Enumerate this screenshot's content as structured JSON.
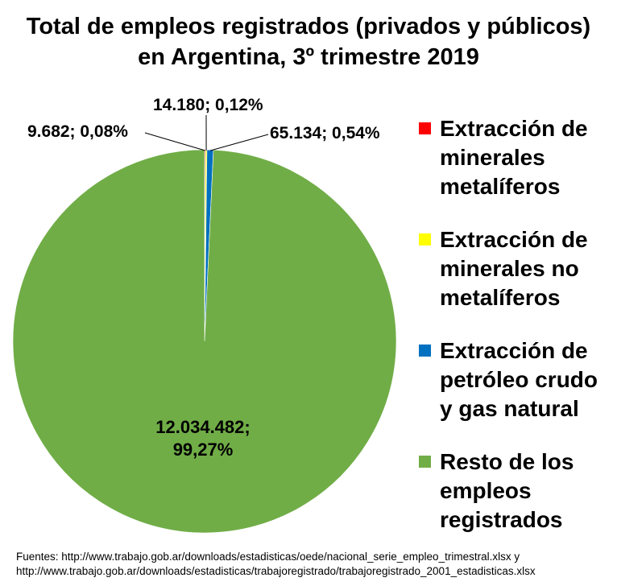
{
  "chart_data": {
    "type": "pie",
    "title_lines": [
      "Total de empleos registrados (privados y públicos)",
      "en Argentina, 3º trimestre 2019"
    ],
    "slices": [
      {
        "name": "Extracción de minerales metalíferos",
        "value": 9682,
        "label": "9.682; 0,08%",
        "color": "#ff0000"
      },
      {
        "name": "Extracción de minerales no metalíferos",
        "value": 14180,
        "label": "14.180; 0,12%",
        "color": "#ffff00"
      },
      {
        "name": "Extracción de petróleo crudo y gas natural",
        "value": 65134,
        "label": "65.134; 0,54%",
        "color": "#0070c0"
      },
      {
        "name": "Resto de los empleos registrados",
        "value": 12034482,
        "label_lines": [
          "12.034.482;",
          "99,27%"
        ],
        "color": "#70ad47"
      }
    ],
    "legend_lines": [
      [
        "Extracción de",
        "minerales",
        "metalíferos"
      ],
      [
        "Extracción de",
        "minerales no",
        "metalíferos"
      ],
      [
        "Extracción de",
        "petróleo crudo",
        "y gas natural"
      ],
      [
        "Resto de los",
        "empleos",
        "registrados"
      ]
    ],
    "legend_position": "right"
  },
  "sources": [
    "Fuentes: http://www.trabajo.gob.ar/downloads/estadisticas/oede/nacional_serie_empleo_trimestral.xlsx y",
    "http://www.trabajo.gob.ar/downloads/estadisticas/trabajoregistrado/trabajoregistrado_2001_estadisticas.xlsx"
  ]
}
